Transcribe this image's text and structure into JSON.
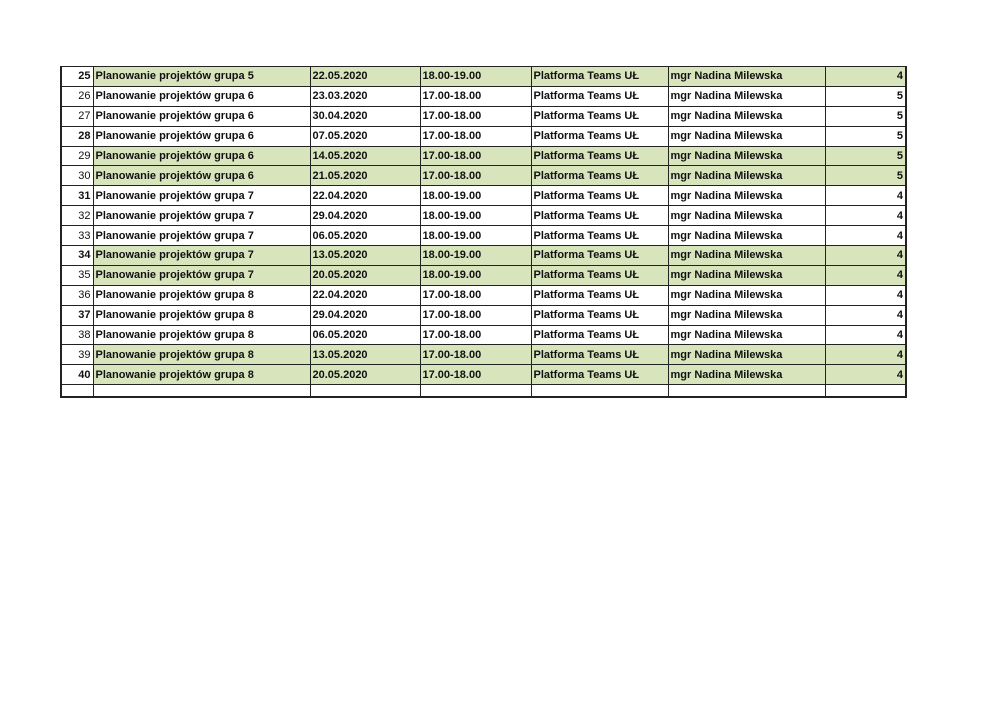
{
  "highlight_color": "#d8e4bc",
  "rows": [
    {
      "no": "25",
      "bold": true,
      "green": true,
      "subject": "Planowanie projektów grupa 5",
      "date": "22.05.2020",
      "time": "18.00-19.00",
      "place": "Platforma Teams UŁ",
      "teacher": "mgr Nadina Milewska",
      "hours": "4"
    },
    {
      "no": "26",
      "bold": false,
      "green": false,
      "subject": "Planowanie projektów grupa 6",
      "date": "23.03.2020",
      "time": "17.00-18.00",
      "place": "Platforma Teams UŁ",
      "teacher": "mgr Nadina Milewska",
      "hours": "5"
    },
    {
      "no": "27",
      "bold": false,
      "green": false,
      "subject": "Planowanie projektów grupa 6",
      "date": "30.04.2020",
      "time": "17.00-18.00",
      "place": "Platforma Teams UŁ",
      "teacher": "mgr Nadina Milewska",
      "hours": "5"
    },
    {
      "no": "28",
      "bold": true,
      "green": false,
      "subject": "Planowanie projektów grupa 6",
      "date": "07.05.2020",
      "time": "17.00-18.00",
      "place": "Platforma Teams UŁ",
      "teacher": "mgr Nadina Milewska",
      "hours": "5"
    },
    {
      "no": "29",
      "bold": false,
      "green": true,
      "subject": "Planowanie projektów grupa 6",
      "date": "14.05.2020",
      "time": "17.00-18.00",
      "place": "Platforma Teams UŁ",
      "teacher": "mgr Nadina Milewska",
      "hours": "5"
    },
    {
      "no": "30",
      "bold": false,
      "green": true,
      "subject": "Planowanie projektów grupa 6",
      "date": "21.05.2020",
      "time": "17.00-18.00",
      "place": "Platforma Teams UŁ",
      "teacher": "mgr Nadina Milewska",
      "hours": "5"
    },
    {
      "no": "31",
      "bold": true,
      "green": false,
      "subject": "Planowanie projektów grupa 7",
      "date": "22.04.2020",
      "time": "18.00-19.00",
      "place": "Platforma Teams UŁ",
      "teacher": "mgr Nadina Milewska",
      "hours": "4"
    },
    {
      "no": "32",
      "bold": false,
      "green": false,
      "subject": "Planowanie projektów grupa 7",
      "date": "29.04.2020",
      "time": "18.00-19.00",
      "place": "Platforma Teams UŁ",
      "teacher": "mgr Nadina Milewska",
      "hours": "4"
    },
    {
      "no": "33",
      "bold": false,
      "green": false,
      "subject": "Planowanie projektów grupa 7",
      "date": "06.05.2020",
      "time": "18.00-19.00",
      "place": "Platforma Teams UŁ",
      "teacher": "mgr Nadina Milewska",
      "hours": "4"
    },
    {
      "no": "34",
      "bold": true,
      "green": true,
      "subject": "Planowanie projektów grupa 7",
      "date": "13.05.2020",
      "time": "18.00-19.00",
      "place": "Platforma Teams UŁ",
      "teacher": "mgr Nadina Milewska",
      "hours": "4"
    },
    {
      "no": "35",
      "bold": false,
      "green": true,
      "subject": "Planowanie projektów grupa 7",
      "date": "20.05.2020",
      "time": "18.00-19.00",
      "place": "Platforma Teams UŁ",
      "teacher": "mgr Nadina Milewska",
      "hours": "4"
    },
    {
      "no": "36",
      "bold": false,
      "green": false,
      "subject": "Planowanie projektów grupa 8",
      "date": "22.04.2020",
      "time": "17.00-18.00",
      "place": "Platforma Teams UŁ",
      "teacher": "mgr Nadina Milewska",
      "hours": "4"
    },
    {
      "no": "37",
      "bold": true,
      "green": false,
      "subject": "Planowanie projektów grupa 8",
      "date": "29.04.2020",
      "time": "17.00-18.00",
      "place": "Platforma Teams UŁ",
      "teacher": "mgr Nadina Milewska",
      "hours": "4"
    },
    {
      "no": "38",
      "bold": false,
      "green": false,
      "subject": "Planowanie projektów grupa 8",
      "date": "06.05.2020",
      "time": "17.00-18.00",
      "place": "Platforma Teams UŁ",
      "teacher": "mgr Nadina Milewska",
      "hours": "4"
    },
    {
      "no": "39",
      "bold": false,
      "green": true,
      "subject": "Planowanie projektów grupa 8",
      "date": "13.05.2020",
      "time": "17.00-18.00",
      "place": "Platforma Teams UŁ",
      "teacher": "mgr Nadina Milewska",
      "hours": "4"
    },
    {
      "no": "40",
      "bold": true,
      "green": true,
      "subject": "Planowanie projektów grupa 8",
      "date": "20.05.2020",
      "time": "17.00-18.00",
      "place": "Platforma Teams UŁ",
      "teacher": "mgr Nadina Milewska",
      "hours": "4"
    }
  ]
}
